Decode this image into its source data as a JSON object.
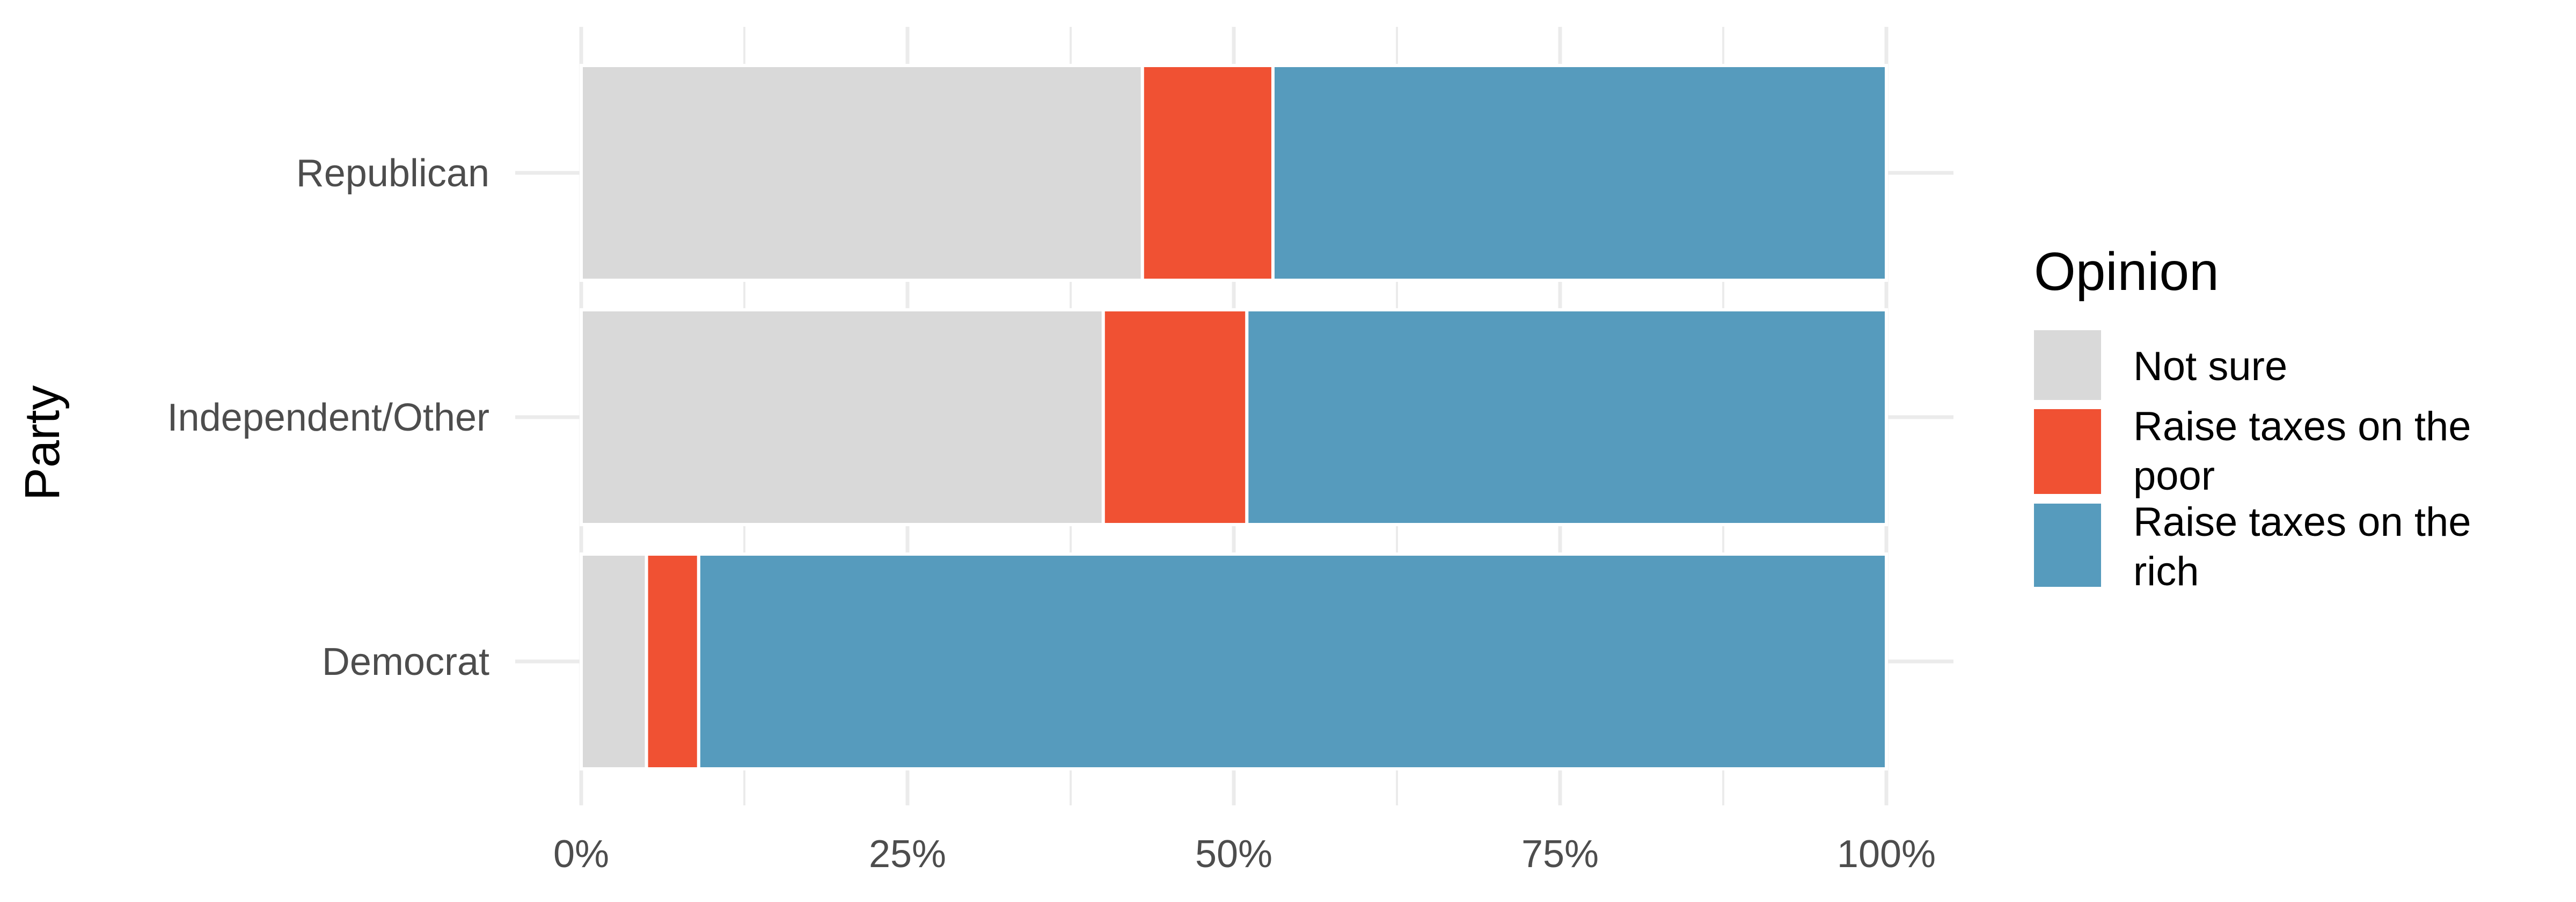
{
  "chart_data": {
    "type": "bar",
    "orientation": "horizontal",
    "stacked": "percent",
    "categories": [
      "Republican",
      "Independent/Other",
      "Democrat"
    ],
    "series": [
      {
        "name": "Not sure",
        "color": "#d9d9d9",
        "values": [
          43,
          40,
          5
        ]
      },
      {
        "name": "Raise taxes on the poor",
        "color": "#f05133",
        "values": [
          10,
          11,
          4
        ]
      },
      {
        "name": "Raise taxes on the rich",
        "color": "#569bbd",
        "values": [
          47,
          49,
          91
        ]
      }
    ],
    "xlabel": "",
    "ylabel": "Party",
    "xlim": [
      0,
      100
    ],
    "xticks": [
      "0%",
      "25%",
      "50%",
      "75%",
      "100%"
    ],
    "grid": true,
    "legend": {
      "title": "Opinion",
      "placement": "right",
      "entries": [
        [
          "Not sure"
        ],
        [
          "Raise taxes on the",
          "poor"
        ],
        [
          "Raise taxes on the",
          "rich"
        ]
      ]
    }
  }
}
